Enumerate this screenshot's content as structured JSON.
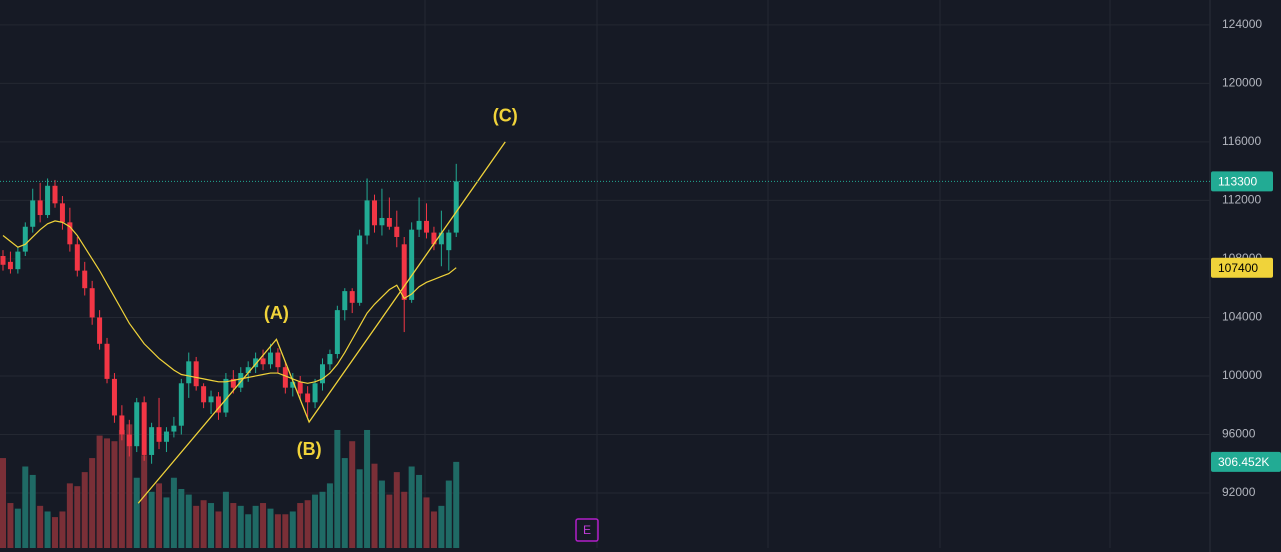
{
  "chart_data": {
    "type": "candlestick",
    "background": "#161a25",
    "grid_color": "#242832",
    "up_color": "#22ab94",
    "down_color": "#f23645",
    "volume_up_color": "#1f6a65",
    "volume_down_color": "#7a2f37",
    "ma_color": "#f0d33a",
    "wave_color": "#f0d33a",
    "ylim": [
      88240,
      125700
    ],
    "yticks": [
      92000,
      96000,
      100000,
      104000,
      108000,
      112000,
      116000,
      120000,
      124000
    ],
    "open": [
      108200,
      107800,
      107300,
      108500,
      110200,
      112000,
      111000,
      113000,
      111800,
      110500,
      109000,
      107200,
      106000,
      104000,
      102200,
      99800,
      97300,
      96000,
      95200,
      98200,
      94600,
      96500,
      95500,
      96200,
      96600,
      99500,
      101000,
      99300,
      98200,
      98600,
      97500,
      99800,
      99200,
      100200,
      100600,
      101200,
      100800,
      101600,
      100600,
      99200,
      99600,
      98800,
      98200,
      99500,
      100800,
      101500,
      104500,
      105800,
      105000,
      109600,
      112000,
      110300,
      110800,
      110200,
      109000,
      105200,
      110000,
      110600,
      109800,
      109000,
      108600,
      109800
    ],
    "high": [
      108600,
      108500,
      108800,
      110500,
      112800,
      113200,
      113500,
      113400,
      112300,
      111500,
      109500,
      107800,
      106500,
      104500,
      102600,
      100200,
      98000,
      97000,
      98500,
      98600,
      96800,
      98500,
      96500,
      97200,
      99800,
      101600,
      101300,
      99500,
      99000,
      98900,
      100200,
      100400,
      100600,
      101000,
      101600,
      101800,
      102200,
      101900,
      101000,
      100200,
      100000,
      99300,
      99800,
      101200,
      101800,
      104800,
      106000,
      106000,
      110000,
      113500,
      112400,
      112800,
      112200,
      111300,
      109500,
      110500,
      112200,
      111800,
      110200,
      111300,
      110000,
      114500
    ],
    "low": [
      107200,
      107000,
      107000,
      108200,
      109800,
      110500,
      110800,
      111500,
      110000,
      108500,
      106800,
      105500,
      103500,
      101800,
      99500,
      96800,
      95600,
      94500,
      94800,
      94200,
      94000,
      95000,
      94800,
      95800,
      96000,
      98500,
      99000,
      97800,
      97400,
      97000,
      97200,
      98800,
      98900,
      99600,
      100200,
      100400,
      100500,
      100200,
      98800,
      98600,
      98400,
      97200,
      97800,
      99000,
      100400,
      101200,
      103800,
      104300,
      104800,
      109000,
      109800,
      109600,
      110000,
      108800,
      103000,
      105000,
      109500,
      109400,
      108600,
      107500,
      107200,
      109500
    ],
    "close": [
      107600,
      107300,
      108500,
      110200,
      112000,
      111000,
      113000,
      111800,
      110500,
      109000,
      107200,
      106000,
      104000,
      102200,
      99800,
      97300,
      96000,
      95200,
      98200,
      94600,
      96500,
      95500,
      96200,
      96600,
      99500,
      101000,
      99300,
      98200,
      98600,
      97500,
      99800,
      99200,
      100200,
      100600,
      101200,
      100800,
      101600,
      100600,
      99200,
      99600,
      98800,
      98200,
      99500,
      100800,
      101500,
      104500,
      105800,
      105000,
      109600,
      112000,
      110300,
      110800,
      110200,
      109500,
      105200,
      110000,
      110600,
      109800,
      109000,
      109800,
      109800,
      113300
    ],
    "ma": [
      109600,
      109200,
      108800,
      109000,
      109500,
      110000,
      110400,
      110600,
      110500,
      110200,
      109600,
      108800,
      108000,
      107200,
      106300,
      105400,
      104500,
      103600,
      102900,
      102200,
      101700,
      101200,
      100800,
      100400,
      100100,
      100000,
      99900,
      99800,
      99700,
      99600,
      99600,
      99700,
      99800,
      99900,
      100000,
      100100,
      100200,
      100200,
      100000,
      99800,
      99600,
      99500,
      99600,
      99800,
      100200,
      100800,
      101600,
      102500,
      103400,
      104300,
      104900,
      105400,
      105900,
      106200,
      105300,
      105600,
      106100,
      106400,
      106600,
      106800,
      107000,
      107400
    ],
    "volume": {
      "vlim": [
        0,
        1950000
      ],
      "values": [
        320000,
        160000,
        140000,
        290000,
        260000,
        150000,
        130000,
        110000,
        130000,
        230000,
        220000,
        270000,
        320000,
        400000,
        390000,
        380000,
        420000,
        440000,
        250000,
        330000,
        200000,
        230000,
        180000,
        250000,
        210000,
        190000,
        150000,
        170000,
        160000,
        130000,
        200000,
        160000,
        150000,
        120000,
        150000,
        160000,
        140000,
        120000,
        120000,
        130000,
        160000,
        170000,
        190000,
        200000,
        230000,
        420000,
        320000,
        380000,
        280000,
        420000,
        300000,
        240000,
        190000,
        270000,
        200000,
        290000,
        260000,
        180000,
        130000,
        150000,
        240000,
        306452
      ],
      "value_labels": [
        null,
        null,
        null,
        null,
        null,
        null,
        null,
        null,
        null,
        null,
        null,
        null,
        null,
        null,
        null,
        null,
        null,
        null,
        null,
        null,
        null,
        null,
        null,
        null,
        null,
        null,
        null,
        null,
        null,
        null,
        null,
        null,
        null,
        null,
        null,
        null,
        null,
        null,
        null,
        null,
        null,
        null,
        null,
        null,
        null,
        null,
        null,
        null,
        null,
        null,
        null,
        null,
        null,
        null,
        null,
        null,
        null,
        null,
        null,
        null,
        null,
        "306.452K"
      ]
    },
    "wave": {
      "x": [
        18.2,
        36.8,
        41.2,
        67.6
      ],
      "y": [
        91300,
        102500,
        96850,
        116000
      ],
      "labels": [
        null,
        "(A)",
        "(B)",
        "(C)"
      ]
    },
    "event_marker": "E"
  }
}
